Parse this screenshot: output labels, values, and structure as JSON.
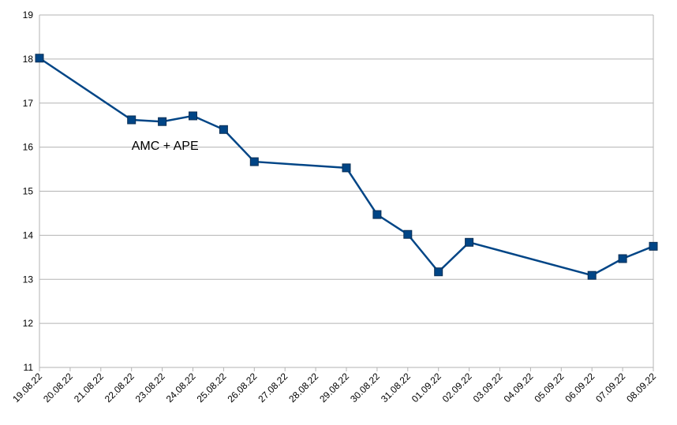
{
  "chart_data": {
    "type": "line",
    "title": "",
    "xlabel": "",
    "ylabel": "",
    "ylim": [
      11,
      19
    ],
    "yticks": [
      11,
      12,
      13,
      14,
      15,
      16,
      17,
      18,
      19
    ],
    "grid": true,
    "x": [
      "19.08.22",
      "20.08.22",
      "21.08.22",
      "22.08.22",
      "23.08.22",
      "24.08.22",
      "25.08.22",
      "26.08.22",
      "27.08.22",
      "28.08.22",
      "29.08.22",
      "30.08.22",
      "31.08.22",
      "01.09.22",
      "02.09.22",
      "03.09.22",
      "04.09.22",
      "05.09.22",
      "06.09.22",
      "07.09.22",
      "08.09.22"
    ],
    "series": [
      {
        "color": "#004586",
        "values": [
          18.02,
          null,
          null,
          16.62,
          16.58,
          16.71,
          16.4,
          15.67,
          null,
          null,
          15.53,
          14.47,
          14.02,
          13.17,
          13.84,
          null,
          null,
          null,
          13.09,
          13.47,
          13.75
        ]
      }
    ],
    "annotations": [
      {
        "text": "AMC + APE",
        "near": "22.08.22"
      }
    ]
  }
}
